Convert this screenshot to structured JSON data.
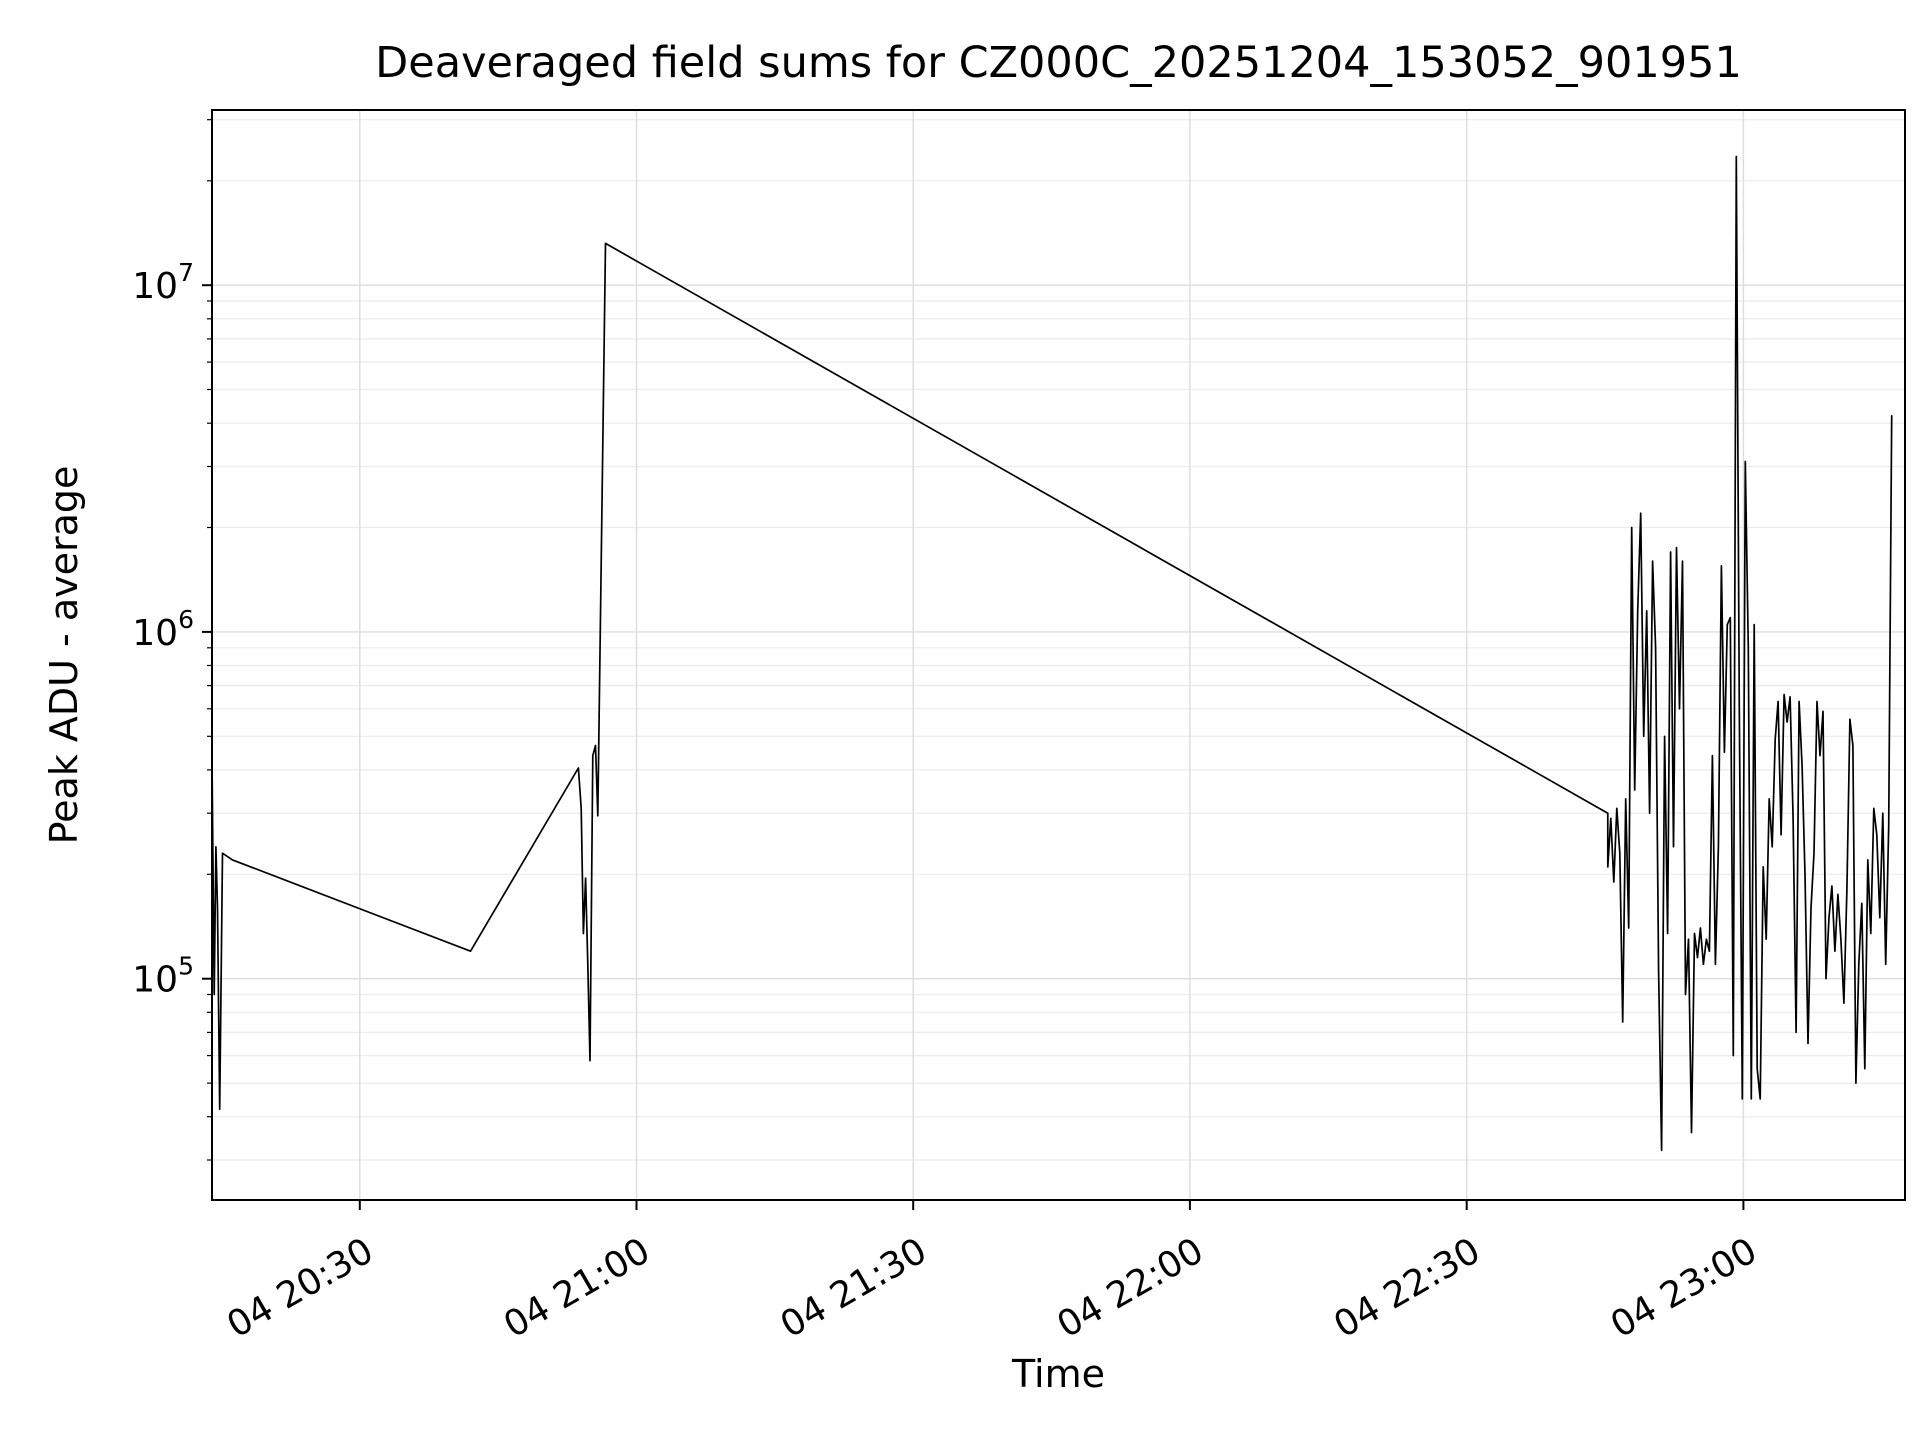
{
  "figure": {
    "background_color": "#ffffff",
    "line_color": "#000000",
    "grid_major_color": "#dddddd",
    "grid_minor_color": "#ebebeb",
    "spine_color": "#000000"
  },
  "chart_data": {
    "type": "line",
    "title": "Deaveraged field sums for CZ000C_20251204_153052_901951",
    "xlabel": "Time",
    "ylabel": "Peak ADU - average",
    "yscale": "log",
    "xscale": "time",
    "x_unit": "decimal hours on day 04",
    "xlim": [
      20.233,
      23.292
    ],
    "ylim": [
      23000,
      32000000
    ],
    "grid": {
      "major": true,
      "minor": true
    },
    "legend": null,
    "x_ticks": [
      {
        "hour": 20.5,
        "label": "04 20:30"
      },
      {
        "hour": 21.0,
        "label": "04 21:00"
      },
      {
        "hour": 21.5,
        "label": "04 21:30"
      },
      {
        "hour": 22.0,
        "label": "04 22:00"
      },
      {
        "hour": 22.5,
        "label": "04 22:30"
      },
      {
        "hour": 23.0,
        "label": "04 23:00"
      }
    ],
    "y_ticks": [
      {
        "value": 100000.0,
        "mantissa": "10",
        "exponent": "5"
      },
      {
        "value": 1000000.0,
        "mantissa": "10",
        "exponent": "6"
      },
      {
        "value": 10000000.0,
        "mantissa": "10",
        "exponent": "7"
      }
    ],
    "series": [
      {
        "name": "peak_adu_average",
        "color": "#000000",
        "points": [
          [
            20.233,
            430000.0
          ],
          [
            20.237,
            90000.0
          ],
          [
            20.24,
            240000.0
          ],
          [
            20.243,
            160000.0
          ],
          [
            20.247,
            42000.0
          ],
          [
            20.252,
            230000.0
          ],
          [
            20.27,
            220000.0
          ],
          [
            20.7,
            120000.0
          ],
          [
            20.895,
            405000.0
          ],
          [
            20.9,
            310000.0
          ],
          [
            20.904,
            135000.0
          ],
          [
            20.908,
            195000.0
          ],
          [
            20.912,
            110000.0
          ],
          [
            20.916,
            58000.0
          ],
          [
            20.921,
            440000.0
          ],
          [
            20.926,
            470000.0
          ],
          [
            20.93,
            295000.0
          ],
          [
            20.944,
            13200000.0
          ],
          [
            22.755,
            300000.0
          ]
        ],
        "noisy_tail": {
          "t_start": 22.755,
          "dt_hours": 0.0054,
          "values": [
            210000.0,
            290000.0,
            190000.0,
            310000.0,
            230000.0,
            75000.0,
            330000.0,
            140000.0,
            2000000.0,
            350000.0,
            1150000.0,
            2200000.0,
            500000.0,
            1150000.0,
            300000.0,
            1600000.0,
            900000.0,
            105000.0,
            32000.0,
            500000.0,
            135000.0,
            1700000.0,
            240000.0,
            1750000.0,
            600000.0,
            1600000.0,
            90000.0,
            130000.0,
            36000.0,
            135000.0,
            115000.0,
            140000.0,
            110000.0,
            130000.0,
            120000.0,
            440000.0,
            110000.0,
            240000.0,
            1550000.0,
            450000.0,
            1050000.0,
            1100000.0,
            60000.0,
            23500000.0,
            600000.0,
            45000.0,
            3100000.0,
            900000.0,
            45000.0,
            1050000.0,
            55000.0,
            45000.0,
            210000.0,
            130000.0,
            330000.0,
            240000.0,
            490000.0,
            630000.0,
            260000.0,
            660000.0,
            550000.0,
            650000.0,
            290000.0,
            70000.0,
            630000.0,
            410000.0,
            200000.0,
            65000.0,
            160000.0,
            230000.0,
            630000.0,
            440000.0,
            590000.0,
            100000.0,
            150000.0,
            185000.0,
            120000.0,
            175000.0,
            130000.0,
            85000.0,
            180000.0,
            560000.0,
            470000.0,
            50000.0,
            110000.0,
            165000.0,
            55000.0,
            220000.0,
            135000.0,
            310000.0,
            260000.0,
            150000.0,
            300000.0,
            110000.0,
            275000.0,
            4200000.0
          ]
        }
      }
    ]
  }
}
